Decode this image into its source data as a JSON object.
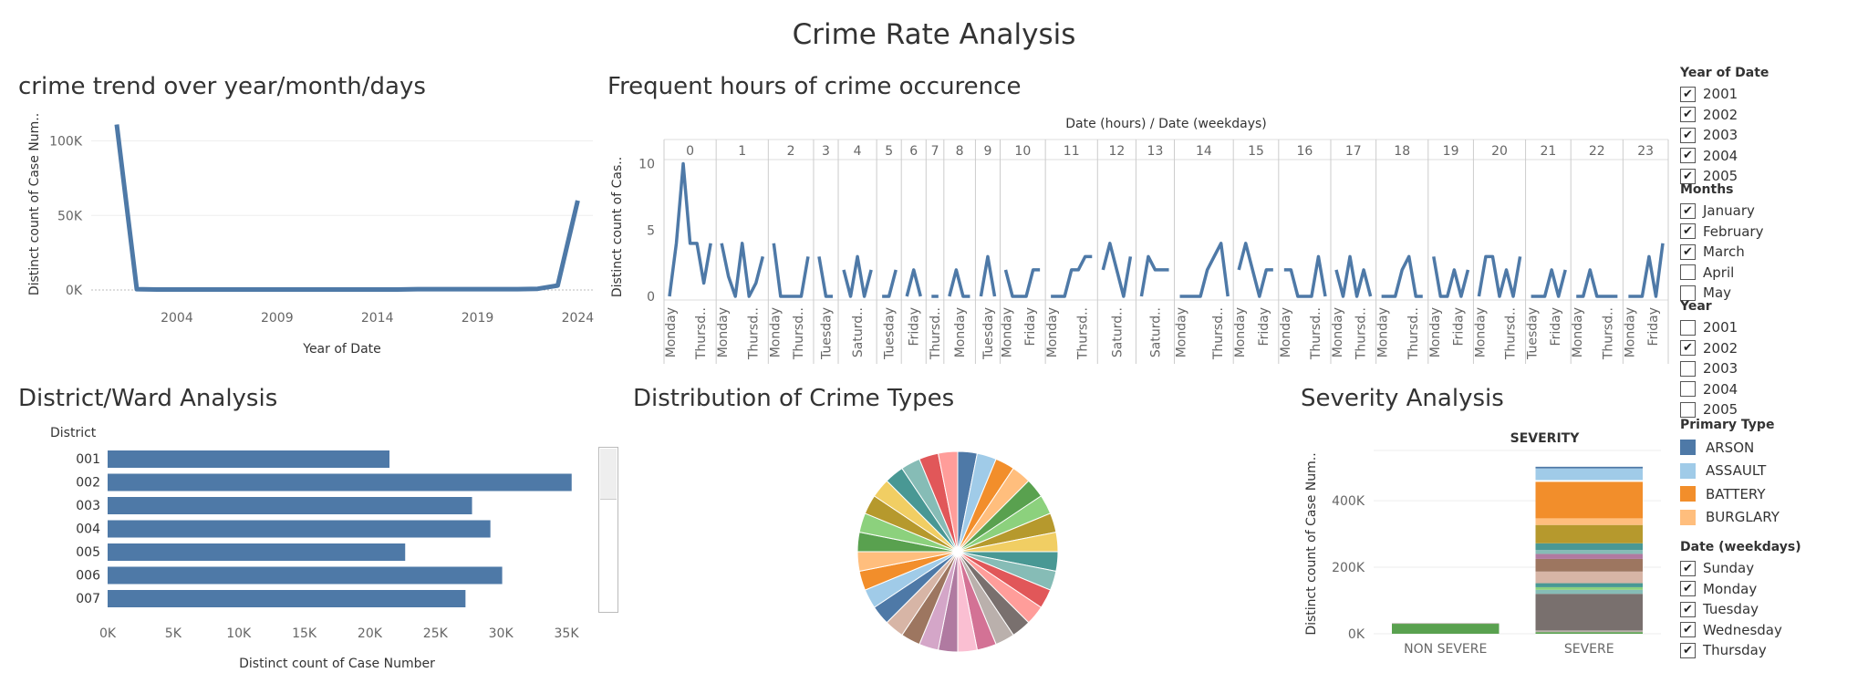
{
  "dashboard": {
    "title": "Crime Rate Analysis"
  },
  "charts": {
    "trend": {
      "title": "crime trend over year/month/days"
    },
    "hours": {
      "title": "Frequent hours of crime occurence"
    },
    "district": {
      "title": "District/Ward Analysis"
    },
    "types": {
      "title": "Distribution of Crime Types"
    },
    "severity": {
      "title": "Severity Analysis"
    }
  },
  "filters": {
    "year_of_date": {
      "title": "Year of Date",
      "items": [
        {
          "label": "2001",
          "checked": true
        },
        {
          "label": "2002",
          "checked": true
        },
        {
          "label": "2003",
          "checked": true
        },
        {
          "label": "2004",
          "checked": true
        },
        {
          "label": "2005",
          "checked": true
        }
      ]
    },
    "months": {
      "title": "Months",
      "items": [
        {
          "label": "January",
          "checked": true
        },
        {
          "label": "February",
          "checked": true
        },
        {
          "label": "March",
          "checked": true
        },
        {
          "label": "April",
          "checked": false
        },
        {
          "label": "May",
          "checked": false
        }
      ]
    },
    "year": {
      "title": "Year",
      "items": [
        {
          "label": "2001",
          "checked": false
        },
        {
          "label": "2002",
          "checked": true
        },
        {
          "label": "2003",
          "checked": false
        },
        {
          "label": "2004",
          "checked": false
        },
        {
          "label": "2005",
          "checked": false
        }
      ]
    },
    "primary_type": {
      "title": "Primary Type",
      "items": [
        {
          "label": "ARSON",
          "color": "#4e79a7"
        },
        {
          "label": "ASSAULT",
          "color": "#a0cbe8"
        },
        {
          "label": "BATTERY",
          "color": "#f28e2b"
        },
        {
          "label": "BURGLARY",
          "color": "#ffbe7d"
        }
      ]
    },
    "weekdays": {
      "title": "Date (weekdays)",
      "items": [
        {
          "label": "Sunday",
          "checked": true
        },
        {
          "label": "Monday",
          "checked": true
        },
        {
          "label": "Tuesday",
          "checked": true
        },
        {
          "label": "Wednesday",
          "checked": true
        },
        {
          "label": "Thursday",
          "checked": true
        }
      ]
    }
  },
  "chart_data": [
    {
      "id": "trend",
      "type": "line",
      "title": "crime trend over year/month/days",
      "xlabel": "Year of Date",
      "ylabel": "Distinct count of Case Num..",
      "x": [
        2001,
        2002,
        2003,
        2004,
        2005,
        2006,
        2007,
        2008,
        2009,
        2010,
        2011,
        2012,
        2013,
        2014,
        2015,
        2016,
        2017,
        2018,
        2019,
        2020,
        2021,
        2022,
        2023,
        2024
      ],
      "values": [
        111000,
        500,
        300,
        300,
        300,
        300,
        300,
        300,
        300,
        300,
        300,
        300,
        300,
        300,
        300,
        500,
        500,
        500,
        500,
        500,
        500,
        800,
        3000,
        60000
      ],
      "xticks": [
        "2004",
        "2009",
        "2014",
        "2019",
        "2024"
      ],
      "yticks": [
        "0K",
        "50K",
        "100K"
      ],
      "ylim": [
        0,
        115000
      ],
      "color": "#4e79a7"
    },
    {
      "id": "hours",
      "type": "line",
      "title": "Frequent hours of crime occurence",
      "header": "Date (hours)  /  Date (weekdays)",
      "ylabel": "Distinct count of Cas..",
      "yticks": [
        "0",
        "5",
        "10"
      ],
      "ylim": [
        0,
        11
      ],
      "color": "#4e79a7",
      "hours": [
        {
          "hour": "0",
          "values": [
            0,
            4,
            10,
            4,
            4,
            1,
            4
          ],
          "labels": [
            "Monday",
            "Thursd.."
          ]
        },
        {
          "hour": "1",
          "values": [
            4,
            1.5,
            0,
            4,
            0,
            1,
            3
          ],
          "labels": [
            "Monday",
            "Thursd.."
          ]
        },
        {
          "hour": "2",
          "values": [
            4,
            0,
            0,
            0,
            0,
            3
          ],
          "labels": [
            "Monday",
            "Thursd.."
          ]
        },
        {
          "hour": "3",
          "values": [
            3,
            0,
            0
          ],
          "labels": [
            "Tuesday"
          ]
        },
        {
          "hour": "4",
          "values": [
            2,
            0,
            3,
            0,
            2
          ],
          "labels": [
            "Saturd.."
          ]
        },
        {
          "hour": "5",
          "values": [
            0,
            0,
            2
          ],
          "labels": [
            "Tuesday"
          ]
        },
        {
          "hour": "6",
          "values": [
            0,
            2,
            0
          ],
          "labels": [
            "Friday"
          ]
        },
        {
          "hour": "7",
          "values": [
            0,
            0
          ],
          "labels": [
            "Thursd.."
          ]
        },
        {
          "hour": "8",
          "values": [
            0,
            2,
            0,
            0
          ],
          "labels": [
            "Monday"
          ]
        },
        {
          "hour": "9",
          "values": [
            0,
            3,
            0
          ],
          "labels": [
            "Tuesday"
          ]
        },
        {
          "hour": "10",
          "values": [
            2,
            0,
            0,
            0,
            2,
            2
          ],
          "labels": [
            "Monday",
            "Friday"
          ]
        },
        {
          "hour": "11",
          "values": [
            0,
            0,
            0,
            2,
            2,
            3,
            3
          ],
          "labels": [
            "Monday",
            "Thursd.."
          ]
        },
        {
          "hour": "12",
          "values": [
            2,
            4,
            2,
            0,
            3
          ],
          "labels": [
            "Saturd.."
          ]
        },
        {
          "hour": "13",
          "values": [
            0,
            3,
            2,
            2,
            2
          ],
          "labels": [
            "Saturd.."
          ]
        },
        {
          "hour": "14",
          "values": [
            0,
            0,
            0,
            0,
            2,
            3,
            4,
            0
          ],
          "labels": [
            "Monday",
            "Thursd.."
          ]
        },
        {
          "hour": "15",
          "values": [
            2,
            4,
            2,
            0,
            2,
            2
          ],
          "labels": [
            "Monday",
            "Friday"
          ]
        },
        {
          "hour": "16",
          "values": [
            2,
            2,
            0,
            0,
            0,
            3,
            0
          ],
          "labels": [
            "Monday",
            "Thursd.."
          ]
        },
        {
          "hour": "17",
          "values": [
            2,
            0,
            3,
            0,
            2,
            0
          ],
          "labels": [
            "Monday",
            "Thursd.."
          ]
        },
        {
          "hour": "18",
          "values": [
            0,
            0,
            0,
            2,
            3,
            0,
            0
          ],
          "labels": [
            "Monday",
            "Thursd.."
          ]
        },
        {
          "hour": "19",
          "values": [
            3,
            0,
            0,
            2,
            0,
            2
          ],
          "labels": [
            "Monday",
            "Friday"
          ]
        },
        {
          "hour": "20",
          "values": [
            0,
            3,
            3,
            0,
            2,
            0,
            3
          ],
          "labels": [
            "Monday",
            "Thursd.."
          ]
        },
        {
          "hour": "21",
          "values": [
            0,
            0,
            0,
            2,
            0,
            2
          ],
          "labels": [
            "Tuesday",
            "Friday"
          ]
        },
        {
          "hour": "22",
          "values": [
            0,
            0,
            2,
            0,
            0,
            0,
            0
          ],
          "labels": [
            "Monday",
            "Thursd.."
          ]
        },
        {
          "hour": "23",
          "values": [
            0,
            0,
            0,
            3,
            0,
            4
          ],
          "labels": [
            "Monday",
            "Friday"
          ]
        }
      ]
    },
    {
      "id": "district",
      "type": "bar",
      "orientation": "horizontal",
      "title": "District/Ward Analysis",
      "category_header": "District",
      "categories": [
        "001",
        "002",
        "003",
        "004",
        "005",
        "006",
        "007"
      ],
      "values": [
        21500,
        35400,
        27800,
        29200,
        22700,
        30100,
        27300
      ],
      "xlabel": "Distinct count of Case Number",
      "xticks": [
        "0K",
        "5K",
        "10K",
        "15K",
        "20K",
        "25K",
        "30K",
        "35K"
      ],
      "xlim": [
        0,
        35000
      ],
      "color": "#4e79a7"
    },
    {
      "id": "types",
      "type": "pie",
      "title": "Distribution of Crime Types",
      "values": [
        1,
        1,
        1,
        1,
        1,
        1,
        1,
        1,
        1,
        1,
        1,
        1,
        1,
        1,
        1,
        1,
        1,
        1,
        1,
        1,
        1,
        1,
        1,
        1,
        1,
        1,
        1,
        1,
        1,
        1,
        1,
        1
      ],
      "colors": [
        "#4e79a7",
        "#a0cbe8",
        "#f28e2b",
        "#ffbe7d",
        "#59a14f",
        "#8cd17d",
        "#b6992d",
        "#f1ce63",
        "#499894",
        "#86bcb6",
        "#e15759",
        "#ff9d9a",
        "#79706e",
        "#bab0ac",
        "#d37295",
        "#fabfd2",
        "#b07aa1",
        "#d4a6c8",
        "#9d7660",
        "#d7b5a6",
        "#4e79a7",
        "#a0cbe8",
        "#f28e2b",
        "#ffbe7d",
        "#59a14f",
        "#8cd17d",
        "#b6992d",
        "#f1ce63",
        "#499894",
        "#86bcb6",
        "#e15759",
        "#ff9d9a"
      ]
    },
    {
      "id": "severity",
      "type": "bar",
      "stacked": true,
      "title": "Severity Analysis",
      "header": "SEVERITY",
      "ylabel": "Distinct count of Case Num..",
      "categories": [
        "NON SEVERE",
        "SEVERE"
      ],
      "yticks": [
        "0K",
        "200K",
        "400K"
      ],
      "ylim": [
        0,
        540000
      ],
      "series": [
        {
          "values": [
            30000,
            5000
          ],
          "color": "#59a14f"
        },
        {
          "values": [
            2000,
            5000
          ],
          "color": "#bab0ac"
        },
        {
          "values": [
            0,
            110000
          ],
          "color": "#79706e"
        },
        {
          "values": [
            0,
            12000
          ],
          "color": "#86bcb6"
        },
        {
          "values": [
            0,
            8000
          ],
          "color": "#8cd17d"
        },
        {
          "values": [
            0,
            12000
          ],
          "color": "#499894"
        },
        {
          "values": [
            0,
            35000
          ],
          "color": "#d7b5a6"
        },
        {
          "values": [
            0,
            38000
          ],
          "color": "#9d7660"
        },
        {
          "values": [
            0,
            15000
          ],
          "color": "#b07aa1"
        },
        {
          "values": [
            0,
            12000
          ],
          "color": "#86bcb6"
        },
        {
          "values": [
            0,
            20000
          ],
          "color": "#499894"
        },
        {
          "values": [
            0,
            55000
          ],
          "color": "#b6992d"
        },
        {
          "values": [
            0,
            20000
          ],
          "color": "#ffbe7d"
        },
        {
          "values": [
            0,
            110000
          ],
          "color": "#f28e2b"
        },
        {
          "values": [
            0,
            5000
          ],
          "color": "#ffffff"
        },
        {
          "values": [
            0,
            35000
          ],
          "color": "#a0cbe8"
        },
        {
          "values": [
            0,
            5000
          ],
          "color": "#4e79a7"
        }
      ]
    }
  ]
}
